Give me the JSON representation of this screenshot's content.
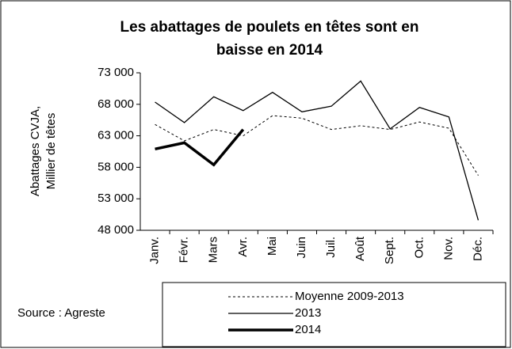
{
  "chart_data": {
    "type": "line",
    "title": [
      "Les abattages de poulets en têtes sont en",
      "baisse en 2014"
    ],
    "y_label": [
      "Abattages CVJA,",
      "Millier de têtes"
    ],
    "annotation": "Source : Agreste",
    "categories": [
      "Janv.",
      "Févr.",
      "Mars",
      "Avr.",
      "Mai",
      "Juin",
      "Juil.",
      "Août",
      "Sept.",
      "Oct.",
      "Nov.",
      "Déc."
    ],
    "series": [
      {
        "name": "Moyenne 2009-2013",
        "color": "#000000",
        "line_style": "dotted",
        "values": [
          64800,
          62200,
          64000,
          63000,
          66200,
          65800,
          64000,
          64600,
          64000,
          65200,
          64200,
          56700
        ]
      },
      {
        "name": "2013",
        "color": "#000000",
        "line_style": "solid",
        "values": [
          68350,
          65100,
          69200,
          67000,
          69900,
          66800,
          67700,
          71700,
          64100,
          67500,
          66000,
          49600
        ]
      },
      {
        "name": "2014",
        "color": "#000000",
        "line_style": "bold",
        "values": [
          60900,
          61900,
          58400,
          64000,
          null,
          null,
          null,
          null,
          null,
          null,
          null,
          null
        ]
      }
    ],
    "ylim": [
      48000,
      73000
    ],
    "yticks": [
      {
        "value": 48000,
        "label": "48 000"
      },
      {
        "value": 53000,
        "label": "53 000"
      },
      {
        "value": 58000,
        "label": "58 000"
      },
      {
        "value": 63000,
        "label": "63 000"
      },
      {
        "value": 68000,
        "label": "68 000"
      },
      {
        "value": 73000,
        "label": "73 000"
      }
    ],
    "grid": false
  }
}
